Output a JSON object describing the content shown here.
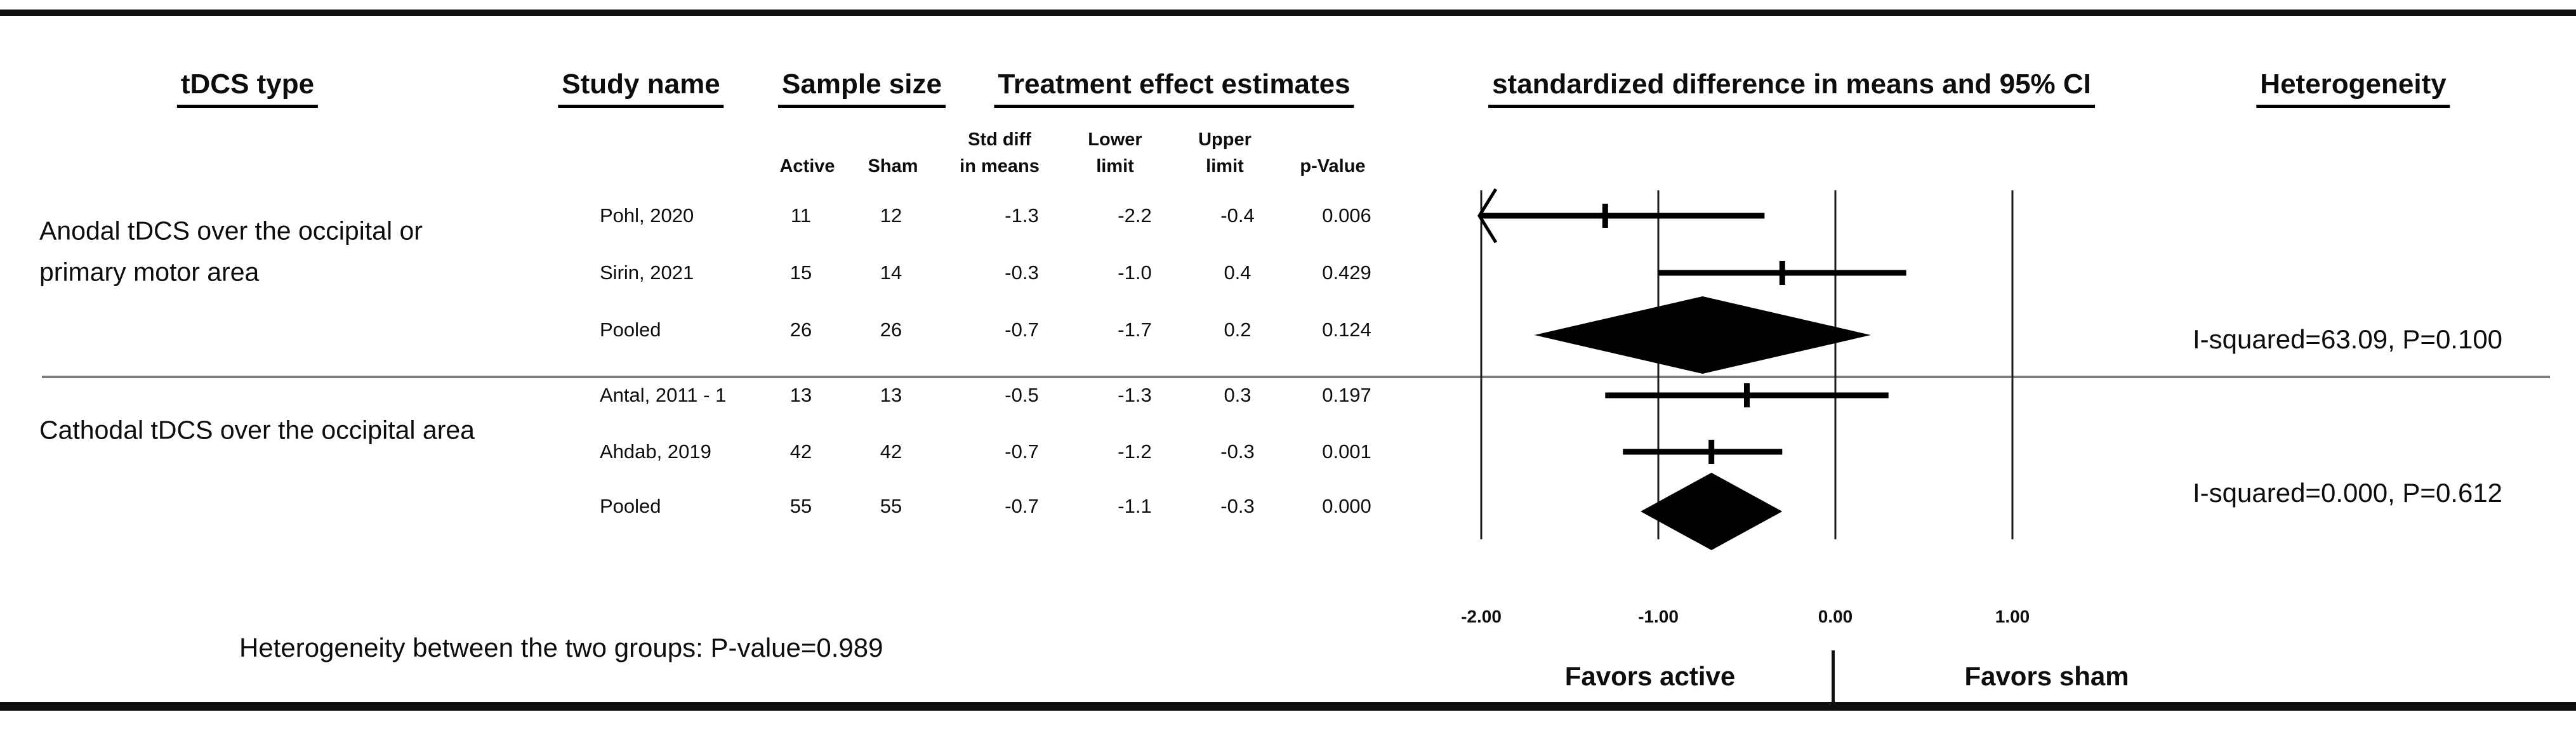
{
  "header": {
    "col_tdcs_type": "tDCS type",
    "col_study_name": "Study name",
    "col_sample_size": "Sample size",
    "col_treatment": "Treatment effect estimates",
    "col_forest": "standardized difference in means and 95% CI",
    "col_heterogeneity": "Heterogeneity"
  },
  "subheaders": {
    "active": "Active",
    "sham": "Sham",
    "std_diff_l1": "Std diff",
    "std_diff_l2": "in means",
    "lower_l1": "Lower",
    "lower_l2": "limit",
    "upper_l1": "Upper",
    "upper_l2": "limit",
    "p_value": "p-Value"
  },
  "footer": {
    "between_groups": "Heterogeneity between the two groups: P-value=0.989",
    "favors_left": "Favors active",
    "favors_right": "Favors sham"
  },
  "chart_data": {
    "type": "forest",
    "title": "standardized difference in means and 95% CI",
    "x_axis": {
      "tick_labels": [
        "-2.00",
        "-1.00",
        "0.00",
        "1.00"
      ],
      "tick_values": [
        -2,
        -1,
        0,
        1
      ],
      "clip_min": -2.0,
      "favors_left": "Favors active",
      "favors_right": "Favors sham"
    },
    "groups": [
      {
        "label_lines": [
          "Anodal tDCS over the occipital or",
          "primary motor area"
        ],
        "heterogeneity": "I-squared=63.09, P=0.100",
        "rows": [
          {
            "study": "Pohl, 2020",
            "active": 11,
            "sham": 12,
            "std_diff": -1.3,
            "lower": -2.2,
            "upper": -0.4,
            "p": "0.006",
            "kind": "study"
          },
          {
            "study": "Sirin, 2021",
            "active": 15,
            "sham": 14,
            "std_diff": -0.3,
            "lower": -1.0,
            "upper": 0.4,
            "p": "0.429",
            "kind": "study"
          },
          {
            "study": "Pooled",
            "active": 26,
            "sham": 26,
            "std_diff": -0.7,
            "lower": -1.7,
            "upper": 0.2,
            "p": "0.124",
            "kind": "pooled"
          }
        ]
      },
      {
        "label_lines": [
          "Cathodal tDCS over the occipital area"
        ],
        "heterogeneity": "I-squared=0.000, P=0.612",
        "rows": [
          {
            "study": "Antal, 2011 - 1",
            "active": 13,
            "sham": 13,
            "std_diff": -0.5,
            "lower": -1.3,
            "upper": 0.3,
            "p": "0.197",
            "kind": "study"
          },
          {
            "study": "Ahdab, 2019",
            "active": 42,
            "sham": 42,
            "std_diff": -0.7,
            "lower": -1.2,
            "upper": -0.3,
            "p": "0.001",
            "kind": "study"
          },
          {
            "study": "Pooled",
            "active": 55,
            "sham": 55,
            "std_diff": -0.7,
            "lower": -1.1,
            "upper": -0.3,
            "p": "0.000",
            "kind": "pooled"
          }
        ]
      }
    ],
    "between_groups_note": "Heterogeneity between the two groups: P-value=0.989"
  },
  "colors": {
    "ink": "#0d0d0d",
    "divider": "#7d7d7d",
    "background": "#ffffff"
  }
}
